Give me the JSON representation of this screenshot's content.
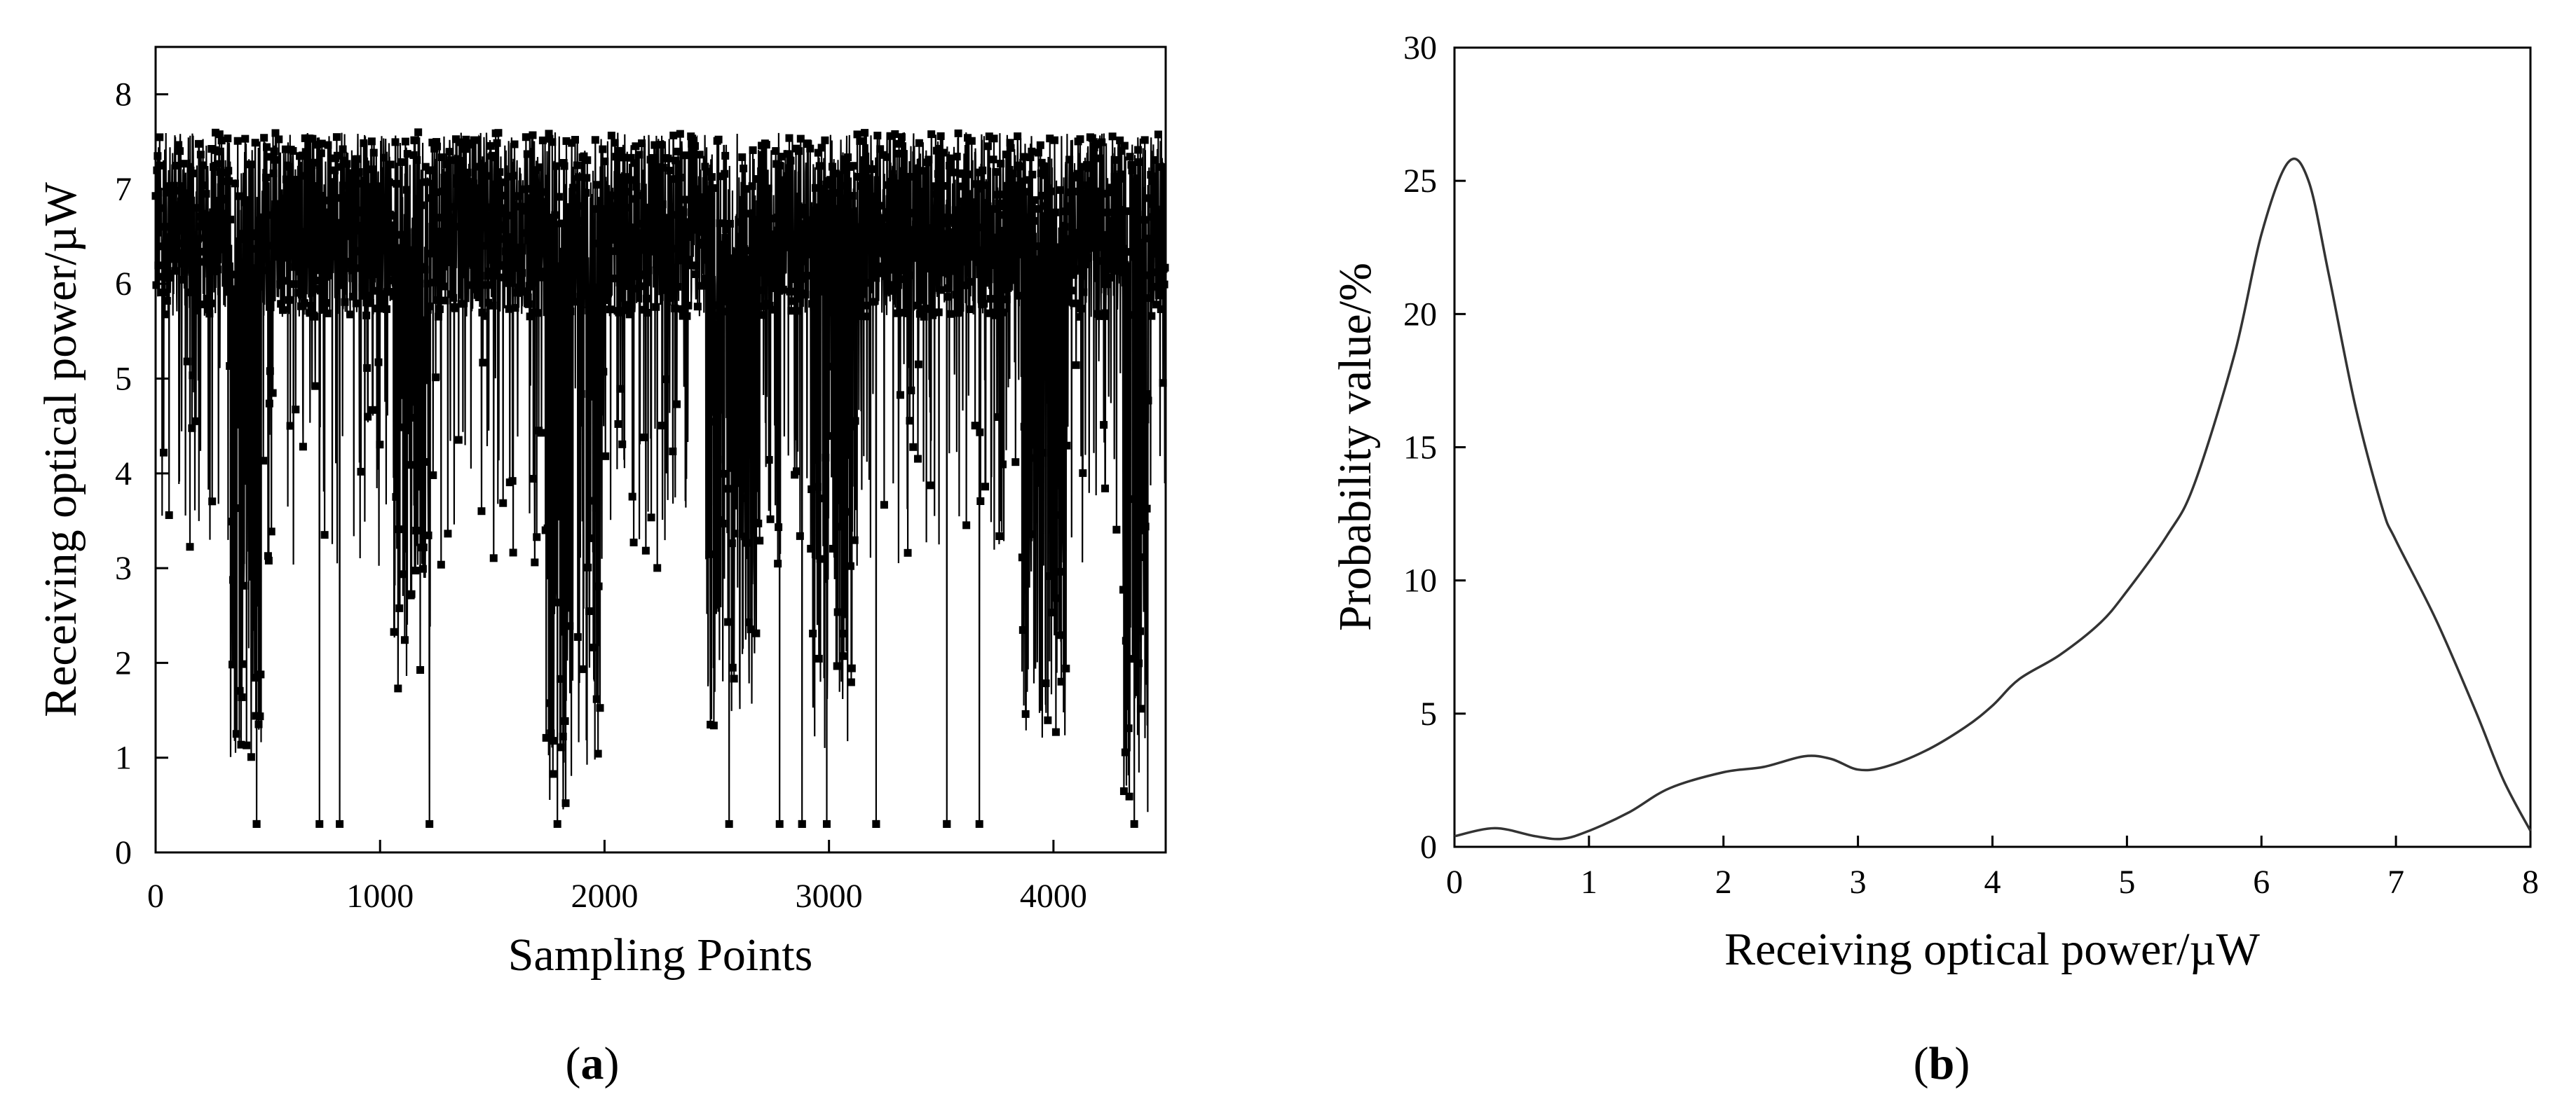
{
  "chart_data": [
    {
      "type": "scatter",
      "xlabel": "Sampling Points",
      "ylabel": "Receiving optical power/µW",
      "xlim": [
        0,
        4500
      ],
      "ylim": [
        0,
        8.5
      ],
      "xticks": [
        0,
        1000,
        2000,
        3000,
        4000
      ],
      "yticks": [
        0,
        1,
        2,
        3,
        4,
        5,
        6,
        7,
        8
      ],
      "marker": "square",
      "connected": true,
      "color": "#000000",
      "n_samples": 4500,
      "band": [
        5.0,
        7.6
      ],
      "deep_fades": [
        {
          "x": 450,
          "y": 0.3
        },
        {
          "x": 730,
          "y": 0.3
        },
        {
          "x": 820,
          "y": 0.3
        },
        {
          "x": 1220,
          "y": 0.3
        },
        {
          "x": 1790,
          "y": 0.3
        },
        {
          "x": 2555,
          "y": 0.3
        },
        {
          "x": 2780,
          "y": 0.3
        },
        {
          "x": 2880,
          "y": 0.3
        },
        {
          "x": 2990,
          "y": 0.3
        },
        {
          "x": 3210,
          "y": 0.3
        },
        {
          "x": 3525,
          "y": 0.3
        },
        {
          "x": 3670,
          "y": 0.3
        },
        {
          "x": 4360,
          "y": 0.3
        }
      ],
      "fade_clusters": [
        {
          "x": [
            330,
            470
          ],
          "min": 1.0
        },
        {
          "x": [
            1060,
            1230
          ],
          "min": 1.4
        },
        {
          "x": [
            1740,
            1860
          ],
          "min": 0.4
        },
        {
          "x": [
            1880,
            2000
          ],
          "min": 0.9
        },
        {
          "x": [
            2450,
            2680
          ],
          "min": 1.3
        },
        {
          "x": [
            2920,
            3110
          ],
          "min": 1.0
        },
        {
          "x": [
            3860,
            4060
          ],
          "min": 1.2
        },
        {
          "x": [
            4310,
            4420
          ],
          "min": 0.3
        }
      ],
      "panel_label": "a"
    },
    {
      "type": "line",
      "xlabel": "Receiving optical power/µW",
      "ylabel": "Probability value/%",
      "xlim": [
        0,
        8
      ],
      "ylim": [
        0,
        30
      ],
      "xticks": [
        0,
        1,
        2,
        3,
        4,
        5,
        6,
        7,
        8
      ],
      "yticks": [
        0,
        5,
        10,
        15,
        20,
        25,
        30
      ],
      "color": "#333333",
      "x": [
        0,
        0.3,
        0.6,
        0.8,
        1.0,
        1.3,
        1.6,
        2.0,
        2.3,
        2.6,
        2.8,
        3.0,
        3.2,
        3.5,
        3.8,
        4.0,
        4.2,
        4.5,
        4.8,
        5.0,
        5.3,
        5.5,
        5.8,
        6.0,
        6.2,
        6.35,
        6.5,
        6.7,
        6.9,
        7.0,
        7.3,
        7.6,
        7.8,
        8.0
      ],
      "y": [
        0.4,
        0.7,
        0.4,
        0.3,
        0.6,
        1.3,
        2.2,
        2.8,
        3.0,
        3.4,
        3.3,
        2.9,
        3.0,
        3.6,
        4.5,
        5.3,
        6.3,
        7.2,
        8.4,
        9.6,
        11.7,
        13.6,
        18.5,
        23.0,
        25.7,
        25.0,
        21.5,
        16.5,
        12.7,
        11.5,
        8.5,
        5.0,
        2.5,
        0.6
      ],
      "panel_label": "b"
    }
  ]
}
